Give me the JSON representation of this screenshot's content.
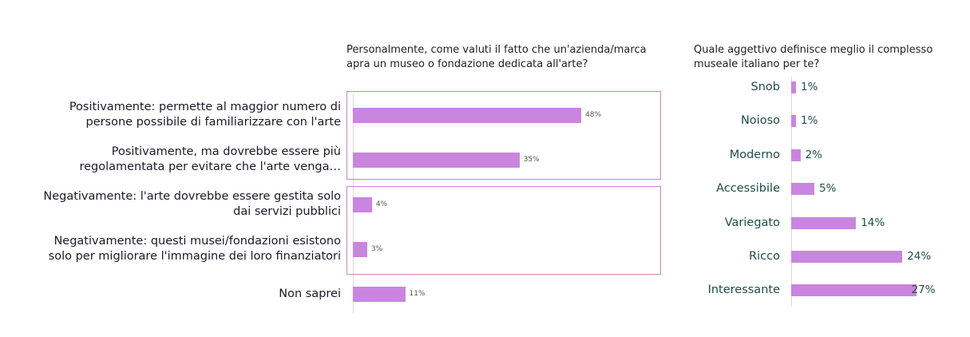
{
  "chart_data": [
    {
      "type": "bar",
      "orientation": "horizontal",
      "title": "Personalmente, come valuti il fatto che un'azienda/marca apra un museo o fondazione dedicata all'arte?",
      "categories": [
        "Positivamente: permette al maggior numero di persone possibile di familiarizzare con l'arte",
        "Positivamente, ma dovrebbe essere più regolamentata per evitare che l'arte venga…",
        "Negativamente: l'arte dovrebbe essere gestita solo dai servizi pubblici",
        "Negativamente: questi musei/fondazioni esistono solo per migliorare l'immagine dei loro finanziatori",
        "Non saprei"
      ],
      "values": [
        48,
        35,
        4,
        3,
        11
      ],
      "value_labels": [
        "48%",
        "35%",
        "4%",
        "3%",
        "11%"
      ],
      "xlim": [
        0,
        100
      ],
      "grid": false,
      "bar_color": "#c985df",
      "box_color": "#c785c3"
    },
    {
      "type": "bar",
      "orientation": "horizontal",
      "title": "Quale aggettivo definisce meglio il complesso museale italiano per te?",
      "categories": [
        "Snob",
        "Noioso",
        "Moderno",
        "Accessibile",
        "Variegato",
        "Ricco",
        "Interessante"
      ],
      "values": [
        1,
        1,
        2,
        5,
        14,
        24,
        27
      ],
      "value_labels": [
        "1%",
        "1%",
        "2%",
        "5%",
        "14%",
        "24%",
        "27%"
      ],
      "xlim": [
        0,
        70
      ],
      "grid": false,
      "bar_color": "#c985df",
      "label_color": "#1e4e48"
    }
  ]
}
